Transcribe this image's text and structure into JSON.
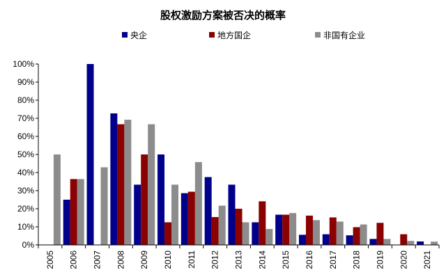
{
  "chart_data": {
    "type": "bar",
    "title": "股权激励方案被否决的概率",
    "xlabel": "",
    "ylabel": "",
    "ylim": [
      0,
      100
    ],
    "yticks": [
      "0%",
      "10%",
      "20%",
      "30%",
      "40%",
      "50%",
      "60%",
      "70%",
      "80%",
      "90%",
      "100%"
    ],
    "categories": [
      "2005",
      "2006",
      "2007",
      "2008",
      "2009",
      "2010",
      "2011",
      "2012",
      "2013",
      "2014",
      "2015",
      "2016",
      "2017",
      "2018",
      "2019",
      "2020",
      "2021"
    ],
    "legend_position": "top",
    "grid": false,
    "series": [
      {
        "name": "央企",
        "color": "#00008b",
        "values": [
          0,
          25,
          100,
          72.7,
          33.3,
          50,
          28.6,
          37.5,
          33.3,
          12.5,
          16.7,
          5.6,
          5.9,
          5.3,
          3.3,
          0,
          1.9
        ]
      },
      {
        "name": "地方国企",
        "color": "#8b0000",
        "values": [
          0,
          36.4,
          0,
          66.7,
          50,
          12.5,
          29.4,
          15.4,
          20,
          24.1,
          16.7,
          16.2,
          15.2,
          9.8,
          12.2,
          5.9,
          0
        ]
      },
      {
        "name": "非国有企业",
        "color": "#8c8c8c",
        "values": [
          50,
          36.4,
          42.9,
          69.2,
          66.7,
          33.3,
          45.8,
          21.7,
          12.5,
          8.8,
          17.6,
          13.7,
          12.9,
          11.3,
          3.3,
          2.2,
          1.8
        ]
      }
    ]
  }
}
